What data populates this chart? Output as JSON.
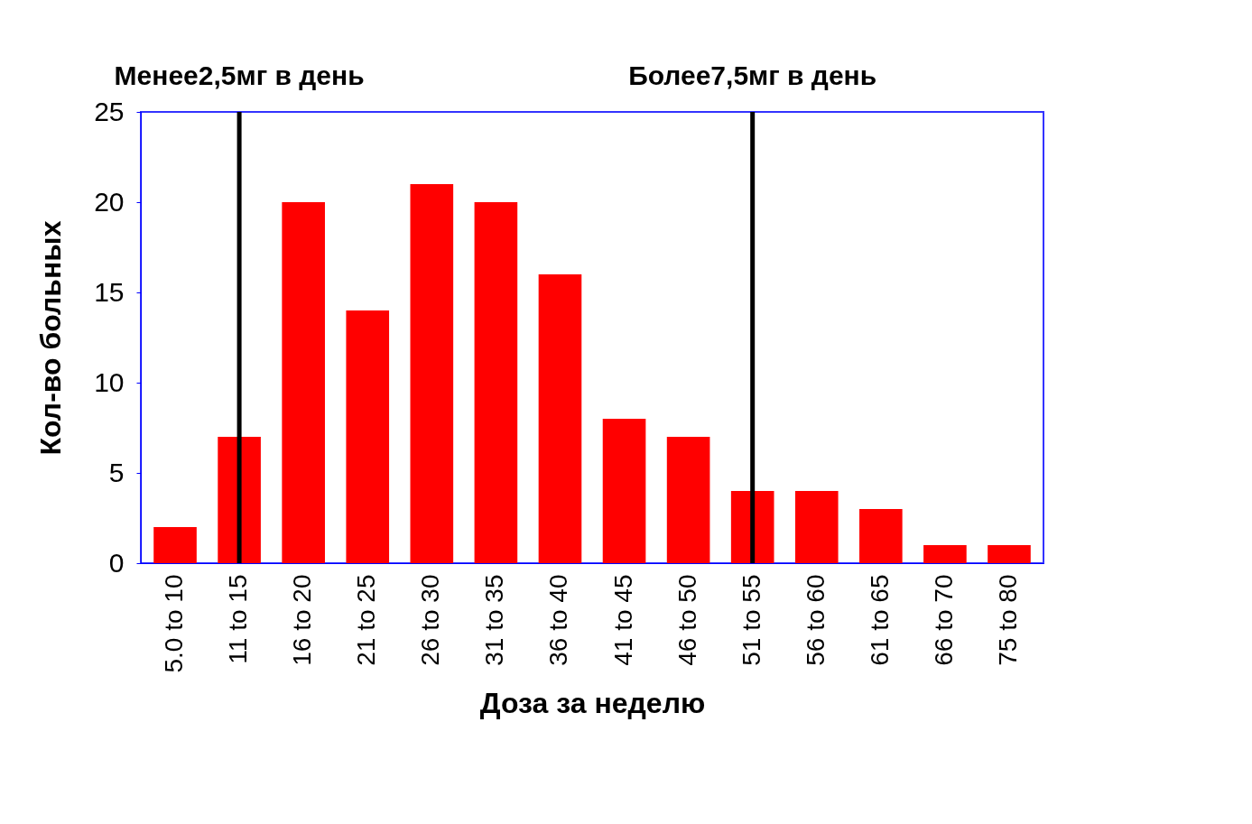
{
  "chart_data": {
    "type": "bar",
    "xlabel": "Доза за неделю",
    "ylabel": "Кол-во больных",
    "categories": [
      "5.0 to 10",
      "11 to 15",
      "16 to 20",
      "21 to 25",
      "26 to 30",
      "31 to 35",
      "36 to 40",
      "41 to 45",
      "46 to 50",
      "51 to 55",
      "56 to 60",
      "61 to 65",
      "66 to 70",
      "75 to 80"
    ],
    "values": [
      2,
      7,
      20,
      14,
      21,
      20,
      16,
      8,
      7,
      4,
      4,
      3,
      1,
      1
    ],
    "color": "#ff0000",
    "ylim": [
      0,
      25
    ],
    "yticks": [
      0,
      5,
      10,
      15,
      20,
      25
    ],
    "ref_lines": [
      {
        "axis": "x",
        "value": "11 to 15",
        "label": "Менее2,5мг в день",
        "color": "#000000"
      },
      {
        "axis": "x",
        "value": "51 to 55",
        "label": "Более7,5мг в день",
        "color": "#000000"
      }
    ]
  }
}
